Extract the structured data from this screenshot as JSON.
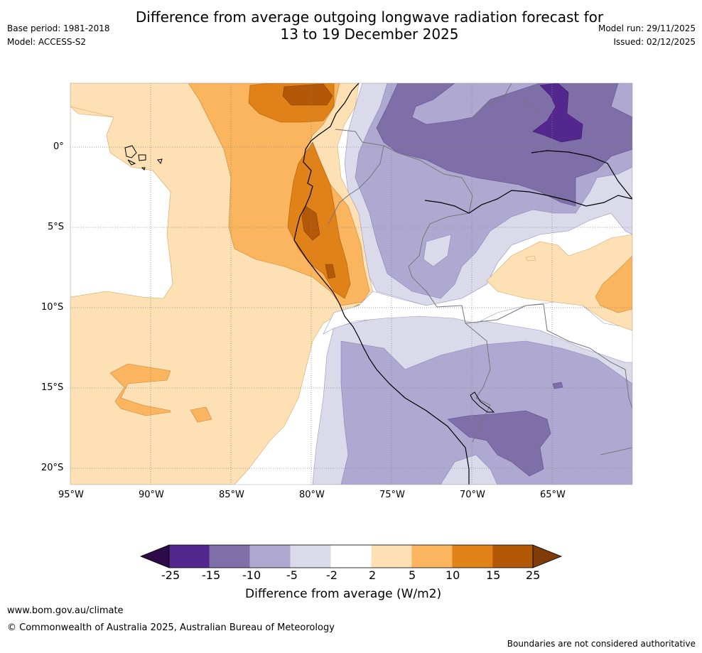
{
  "header": {
    "title_line1": "Difference from average outgoing longwave radiation forecast for",
    "title_line2": "13 to 19 December 2025",
    "base_period": "Base period: 1981-2018",
    "model": "Model: ACCESS-S2",
    "model_run": "Model run: 29/11/2025",
    "issued": "Issued: 02/12/2025"
  },
  "map": {
    "lon_labels": [
      "95°W",
      "90°W",
      "85°W",
      "80°W",
      "75°W",
      "70°W",
      "65°W"
    ],
    "lat_labels": [
      "0°",
      "5°S",
      "10°S",
      "15°S",
      "20°S"
    ]
  },
  "colorbar": {
    "title": "Difference from average (W/m2)",
    "tick_labels": [
      "-25",
      "-15",
      "-10",
      "-5",
      "-2",
      "2",
      "5",
      "10",
      "15",
      "25"
    ],
    "colors": [
      "#2d0b48",
      "#54278f",
      "#7e6fa9",
      "#afa8d1",
      "#dadaea",
      "#ffffff",
      "#fde0b4",
      "#fbb55f",
      "#e08218",
      "#b35806",
      "#7f3b08"
    ]
  },
  "footer": {
    "website": "www.bom.gov.au/climate",
    "copyright": "© Commonwealth of Australia 2025, Australian Bureau of Meteorology",
    "disclaimer": "Boundaries are not considered authoritative"
  }
}
